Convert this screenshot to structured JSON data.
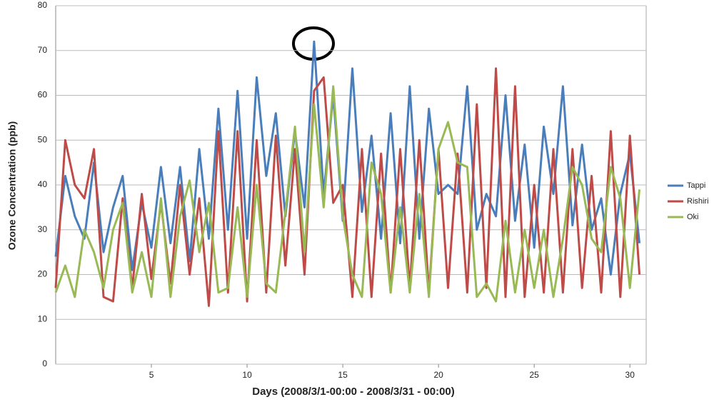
{
  "chart_data": {
    "type": "line",
    "y_label": "Ozone Concentration (ppb)",
    "x_label": "Days (2008/3/1-00:00 - 2008/3/31 - 00:00)",
    "x": [
      0,
      0.5,
      1,
      1.5,
      2,
      2.5,
      3,
      3.5,
      4,
      4.5,
      5,
      5.5,
      6,
      6.5,
      7,
      7.5,
      8,
      8.5,
      9,
      9.5,
      10,
      10.5,
      11,
      11.5,
      12,
      12.5,
      13,
      13.5,
      14,
      14.5,
      15,
      15.5,
      16,
      16.5,
      17,
      17.5,
      18,
      18.5,
      19,
      19.5,
      20,
      20.5,
      21,
      21.5,
      22,
      22.5,
      23,
      23.5,
      24,
      24.5,
      25,
      25.5,
      26,
      26.5,
      27,
      27.5,
      28,
      28.5,
      29,
      29.5,
      30,
      30.5
    ],
    "series": [
      {
        "name": "Tappi",
        "color": "#4a7ebb",
        "values": [
          24,
          42,
          33,
          28,
          45,
          25,
          35,
          42,
          21,
          36,
          26,
          44,
          27,
          44,
          23,
          48,
          28,
          57,
          30,
          61,
          28,
          64,
          42,
          56,
          33,
          52,
          35,
          72,
          38,
          60,
          32,
          66,
          34,
          51,
          28,
          56,
          27,
          62,
          28,
          57,
          38,
          40,
          38,
          62,
          30,
          38,
          33,
          60,
          32,
          49,
          26,
          53,
          38,
          62,
          31,
          49,
          30,
          37,
          20,
          38,
          47,
          27
        ]
      },
      {
        "name": "Rishiri",
        "color": "#be4b48",
        "values": [
          17,
          50,
          40,
          37,
          48,
          15,
          14,
          37,
          17,
          38,
          19,
          36,
          18,
          40,
          20,
          37,
          13,
          52,
          16,
          52,
          14,
          50,
          16,
          51,
          22,
          48,
          20,
          61,
          64,
          36,
          40,
          15,
          48,
          15,
          47,
          16,
          48,
          17,
          50,
          16,
          48,
          17,
          47,
          16,
          58,
          17,
          66,
          15,
          62,
          15,
          40,
          16,
          48,
          16,
          48,
          17,
          42,
          16,
          52,
          15,
          51,
          20
        ]
      },
      {
        "name": "Oki",
        "color": "#98b954",
        "values": [
          16,
          22,
          15,
          30,
          25,
          17,
          30,
          36,
          16,
          25,
          15,
          37,
          15,
          33,
          41,
          25,
          36,
          16,
          17,
          35,
          15,
          40,
          18,
          16,
          34,
          53,
          25,
          58,
          35,
          62,
          33,
          20,
          15,
          45,
          38,
          16,
          35,
          16,
          38,
          15,
          48,
          54,
          45,
          44,
          15,
          18,
          14,
          32,
          16,
          30,
          17,
          30,
          15,
          28,
          44,
          40,
          28,
          25,
          44,
          37,
          17,
          39
        ]
      }
    ],
    "xlim": [
      0,
      30.85
    ],
    "xticks": [
      5,
      10,
      15,
      20,
      25,
      30
    ],
    "ylim": [
      0,
      80
    ],
    "yticks": [
      0,
      10,
      20,
      30,
      40,
      50,
      60,
      70,
      80
    ],
    "grid": true,
    "legend": "right"
  }
}
